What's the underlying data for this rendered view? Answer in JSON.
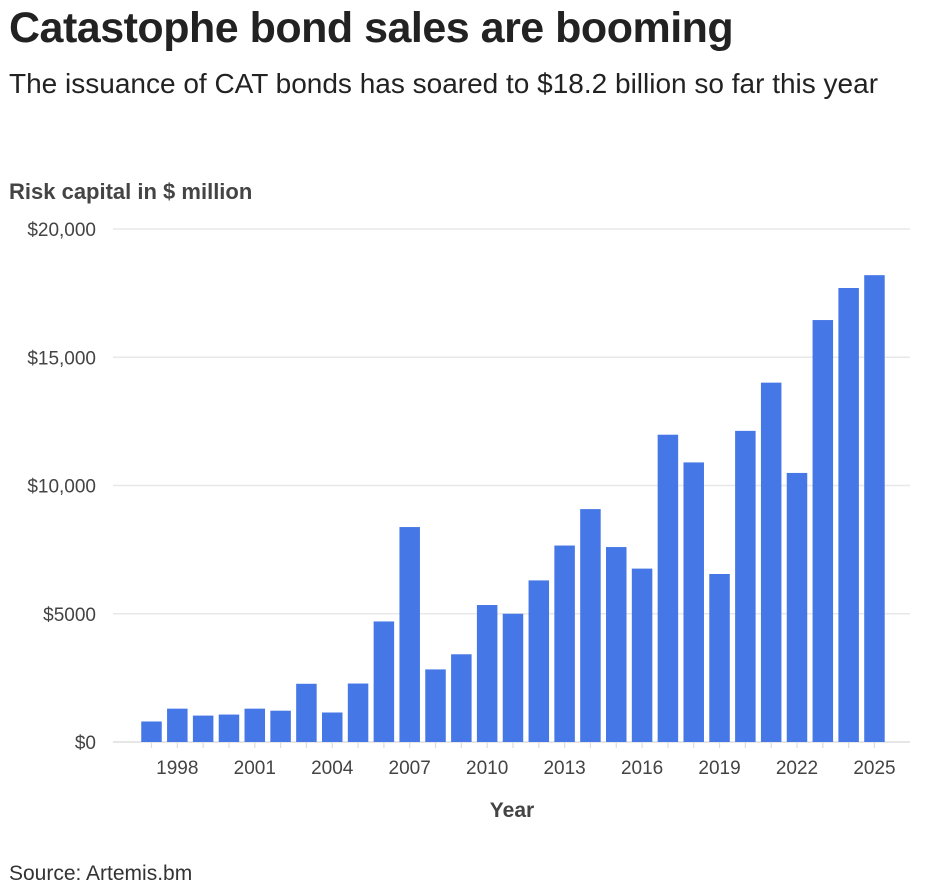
{
  "title": "Catastophe bond sales are booming",
  "subtitle": "The issuance of CAT bonds has soared to $18.2 billion so far this year",
  "source": "Source: Artemis.bm",
  "colors": {
    "bar": "#4677e6",
    "grid": "#e8e8e8",
    "axis": "#dddddd"
  },
  "chart_data": {
    "type": "bar",
    "title": "Catastophe bond sales are booming",
    "subtitle": "The issuance of CAT bonds has soared to $18.2 billion so far this year",
    "xlabel": "Year",
    "ylabel": "Risk capital in $ million",
    "ylim": [
      0,
      20000
    ],
    "grid": true,
    "y_ticks": [
      {
        "value": 0,
        "label": "$0"
      },
      {
        "value": 5000,
        "label": "$5000"
      },
      {
        "value": 10000,
        "label": "$10,000"
      },
      {
        "value": 15000,
        "label": "$15,000"
      },
      {
        "value": 20000,
        "label": "$20,000"
      }
    ],
    "x_ticks": [
      {
        "value": 1998,
        "label": "1998"
      },
      {
        "value": 2001,
        "label": "2001"
      },
      {
        "value": 2004,
        "label": "2004"
      },
      {
        "value": 2007,
        "label": "2007"
      },
      {
        "value": 2010,
        "label": "2010"
      },
      {
        "value": 2013,
        "label": "2013"
      },
      {
        "value": 2016,
        "label": "2016"
      },
      {
        "value": 2019,
        "label": "2019"
      },
      {
        "value": 2022,
        "label": "2022"
      },
      {
        "value": 2025,
        "label": "2025"
      }
    ],
    "categories": [
      1997,
      1998,
      1999,
      2000,
      2001,
      2002,
      2003,
      2004,
      2005,
      2006,
      2007,
      2008,
      2009,
      2010,
      2011,
      2012,
      2013,
      2014,
      2015,
      2016,
      2017,
      2018,
      2019,
      2020,
      2021,
      2022,
      2023,
      2024,
      2025
    ],
    "values": [
      800,
      1300,
      1030,
      1070,
      1300,
      1220,
      2270,
      1150,
      2280,
      4700,
      8380,
      2830,
      3420,
      5340,
      5000,
      6300,
      7660,
      9080,
      7600,
      6760,
      11980,
      10900,
      6550,
      12130,
      14010,
      10490,
      16450,
      17700,
      18200
    ]
  }
}
